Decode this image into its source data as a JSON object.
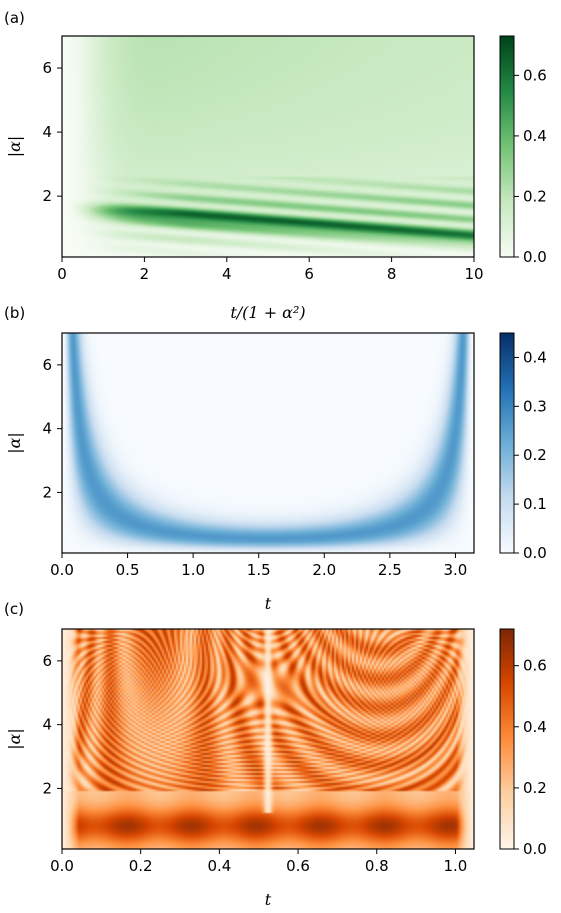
{
  "chart_data": [
    {
      "type": "heatmap",
      "panel_label": "(a)",
      "xlabel": "t/(1 + α²)",
      "ylabel": "|α|",
      "xlim": [
        0,
        10
      ],
      "ylim": [
        0.1,
        7
      ],
      "xticks": [
        "0",
        "2",
        "4",
        "6",
        "8",
        "10"
      ],
      "xtick_values": [
        0,
        2,
        4,
        6,
        8,
        10
      ],
      "yticks": [
        "2",
        "4",
        "6"
      ],
      "ytick_values": [
        2,
        4,
        6
      ],
      "colormap": "Greens",
      "colors": [
        "#f7fcf5",
        "#c7e9c0",
        "#74c476",
        "#238b45",
        "#00441b"
      ],
      "colorbar_range": [
        0,
        0.73
      ],
      "colorbar_ticks": [
        "0.0",
        "0.2",
        "0.4",
        "0.6"
      ],
      "colorbar_tick_values": [
        0.0,
        0.2,
        0.4,
        0.6
      ]
    },
    {
      "type": "heatmap",
      "panel_label": "(b)",
      "xlabel": "t",
      "ylabel": "|α|",
      "xlim": [
        0,
        3.1416
      ],
      "ylim": [
        0.1,
        7
      ],
      "xticks": [
        "0.0",
        "0.5",
        "1.0",
        "1.5",
        "2.0",
        "2.5",
        "3.0"
      ],
      "xtick_values": [
        0.0,
        0.5,
        1.0,
        1.5,
        2.0,
        2.5,
        3.0
      ],
      "yticks": [
        "2",
        "4",
        "6"
      ],
      "ytick_values": [
        2,
        4,
        6
      ],
      "colormap": "Blues",
      "colors": [
        "#f7fbff",
        "#c6dbef",
        "#6baed6",
        "#2171b5",
        "#08306b"
      ],
      "colorbar_range": [
        0,
        0.45
      ],
      "colorbar_ticks": [
        "0.0",
        "0.1",
        "0.2",
        "0.3",
        "0.4"
      ],
      "colorbar_tick_values": [
        0.0,
        0.1,
        0.2,
        0.3,
        0.4
      ]
    },
    {
      "type": "heatmap",
      "panel_label": "(c)",
      "xlabel": "t",
      "ylabel": "|α|",
      "xlim": [
        0,
        1.0472
      ],
      "ylim": [
        0.1,
        7
      ],
      "xticks": [
        "0.0",
        "0.2",
        "0.4",
        "0.6",
        "0.8",
        "1.0"
      ],
      "xtick_values": [
        0.0,
        0.2,
        0.4,
        0.6,
        0.8,
        1.0
      ],
      "yticks": [
        "2",
        "4",
        "6"
      ],
      "ytick_values": [
        2,
        4,
        6
      ],
      "colormap": "Oranges",
      "colors": [
        "#fff5eb",
        "#fdd0a2",
        "#fd8d3c",
        "#d94801",
        "#7f2704"
      ],
      "colorbar_range": [
        0,
        0.72
      ],
      "colorbar_ticks": [
        "0.0",
        "0.2",
        "0.4",
        "0.6"
      ],
      "colorbar_tick_values": [
        0.0,
        0.2,
        0.4,
        0.6
      ]
    }
  ]
}
